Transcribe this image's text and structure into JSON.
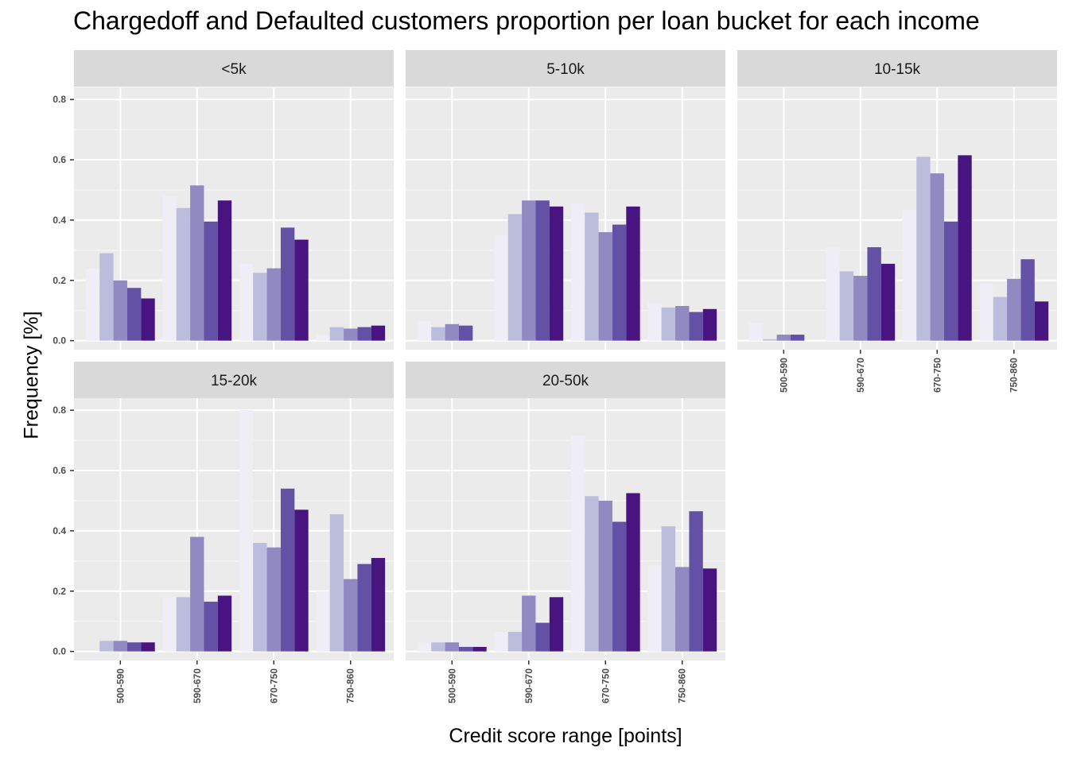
{
  "chart_data": {
    "type": "bar",
    "title": "Chargedoff and Defaulted customers proportion per loan bucket for each income",
    "xlabel": "Credit score range [points]",
    "ylabel": "Frequency [%]",
    "categories": [
      "500-590",
      "590-670",
      "670-750",
      "750-860"
    ],
    "y_ticks": [
      "0.0",
      "0.2",
      "0.4",
      "0.6",
      "0.8"
    ],
    "ylim": [
      -0.03,
      0.84
    ],
    "grid": true,
    "legend": "none",
    "series_colors": [
      "#efedf5",
      "#bcbddc",
      "#9189c2",
      "#6351a6",
      "#48147f"
    ],
    "panels": [
      {
        "label": "<5k",
        "values": [
          [
            0.24,
            0.29,
            0.2,
            0.175,
            0.14
          ],
          [
            0.48,
            0.44,
            0.515,
            0.395,
            0.465
          ],
          [
            0.255,
            0.225,
            0.24,
            0.375,
            0.335
          ],
          [
            0.02,
            0.045,
            0.04,
            0.045,
            0.05
          ]
        ]
      },
      {
        "label": "5-10k",
        "values": [
          [
            0.065,
            0.045,
            0.055,
            0.05,
            null
          ],
          [
            0.35,
            0.42,
            0.465,
            0.465,
            0.445
          ],
          [
            0.455,
            0.425,
            0.36,
            0.385,
            0.445
          ],
          [
            0.125,
            0.11,
            0.115,
            0.095,
            0.105
          ]
        ]
      },
      {
        "label": "10-15k",
        "values": [
          [
            0.06,
            0.005,
            0.02,
            0.02,
            null
          ],
          [
            0.31,
            0.23,
            0.215,
            0.31,
            0.255
          ],
          [
            0.435,
            0.61,
            0.555,
            0.395,
            0.615
          ],
          [
            0.19,
            0.145,
            0.205,
            0.27,
            0.13
          ]
        ]
      },
      {
        "label": "15-20k",
        "values": [
          [
            null,
            0.035,
            0.035,
            0.03,
            0.03
          ],
          [
            0.18,
            0.18,
            0.38,
            0.165,
            0.185
          ],
          [
            0.8,
            0.36,
            0.345,
            0.54,
            0.47
          ],
          [
            0.2,
            0.455,
            0.24,
            0.29,
            0.31
          ]
        ]
      },
      {
        "label": "20-50k",
        "values": [
          [
            0.03,
            0.03,
            0.03,
            0.015,
            0.015
          ],
          [
            0.065,
            0.065,
            0.185,
            0.095,
            0.18
          ],
          [
            0.715,
            0.515,
            0.5,
            0.43,
            0.525
          ],
          [
            0.285,
            0.415,
            0.28,
            0.465,
            0.275
          ]
        ]
      }
    ]
  }
}
